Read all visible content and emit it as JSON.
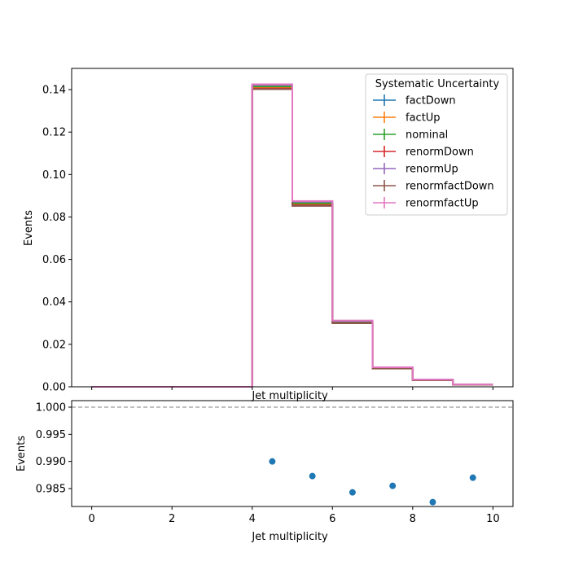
{
  "chart_data": [
    {
      "type": "line",
      "subtype": "step-histogram",
      "title": "",
      "xlabel": "Jet multiplicity",
      "ylabel": "Events",
      "xlim": [
        -0.5,
        10.5
      ],
      "ylim": [
        0,
        0.15
      ],
      "x_ticks_shown_labels": false,
      "y_ticks": [
        "0.00",
        "0.02",
        "0.04",
        "0.06",
        "0.08",
        "0.10",
        "0.12",
        "0.14"
      ],
      "y_tick_values": [
        0,
        0.02,
        0.04,
        0.06,
        0.08,
        0.1,
        0.12,
        0.14
      ],
      "bin_edges": [
        0,
        1,
        2,
        3,
        4,
        5,
        6,
        7,
        8,
        9,
        10
      ],
      "legend": {
        "title": "Systematic Uncertainty",
        "position": "upper right"
      },
      "series": [
        {
          "name": "factDown",
          "color": "#1f77b4",
          "values": [
            0,
            0,
            0,
            0,
            0.141,
            0.086,
            0.0303,
            0.0088,
            0.0032,
            0.001
          ]
        },
        {
          "name": "factUp",
          "color": "#ff7f0e",
          "values": [
            0,
            0,
            0,
            0,
            0.1412,
            0.0862,
            0.0304,
            0.0089,
            0.0032,
            0.001
          ]
        },
        {
          "name": "nominal",
          "color": "#2ca02c",
          "values": [
            0,
            0,
            0,
            0,
            0.1415,
            0.0865,
            0.0305,
            0.0089,
            0.0033,
            0.001
          ]
        },
        {
          "name": "renormDown",
          "color": "#d62728",
          "values": [
            0,
            0,
            0,
            0,
            0.1405,
            0.0855,
            0.03,
            0.0087,
            0.0032,
            0.001
          ]
        },
        {
          "name": "renormUp",
          "color": "#9467bd",
          "values": [
            0,
            0,
            0,
            0,
            0.1422,
            0.0872,
            0.031,
            0.0091,
            0.0034,
            0.0011
          ]
        },
        {
          "name": "renormfactDown",
          "color": "#8c564b",
          "values": [
            0,
            0,
            0,
            0,
            0.1402,
            0.0852,
            0.0299,
            0.0086,
            0.0031,
            0.001
          ]
        },
        {
          "name": "renormfactUp",
          "color": "#e377c2",
          "values": [
            0,
            0,
            0,
            0,
            0.1425,
            0.0875,
            0.0312,
            0.0092,
            0.0034,
            0.0011
          ]
        }
      ]
    },
    {
      "type": "scatter",
      "title": "Jet multiplicity",
      "xlabel": "Jet multiplicity",
      "ylabel": "Events",
      "xlim": [
        -0.5,
        10.5
      ],
      "ylim": [
        0.9817,
        1.0012
      ],
      "reference_line": 1.0,
      "x_ticks": [
        "0",
        "2",
        "4",
        "6",
        "8",
        "10"
      ],
      "x_tick_values": [
        0,
        2,
        4,
        6,
        8,
        10
      ],
      "y_ticks": [
        "0.985",
        "0.990",
        "0.995",
        "1.000"
      ],
      "y_tick_values": [
        0.985,
        0.99,
        0.995,
        1.0
      ],
      "series": [
        {
          "color": "#1f77b4",
          "x": [
            4.5,
            5.5,
            6.5,
            7.5,
            8.5,
            9.5
          ],
          "y": [
            0.99,
            0.9873,
            0.9843,
            0.9855,
            0.9825,
            0.987
          ]
        }
      ]
    }
  ]
}
